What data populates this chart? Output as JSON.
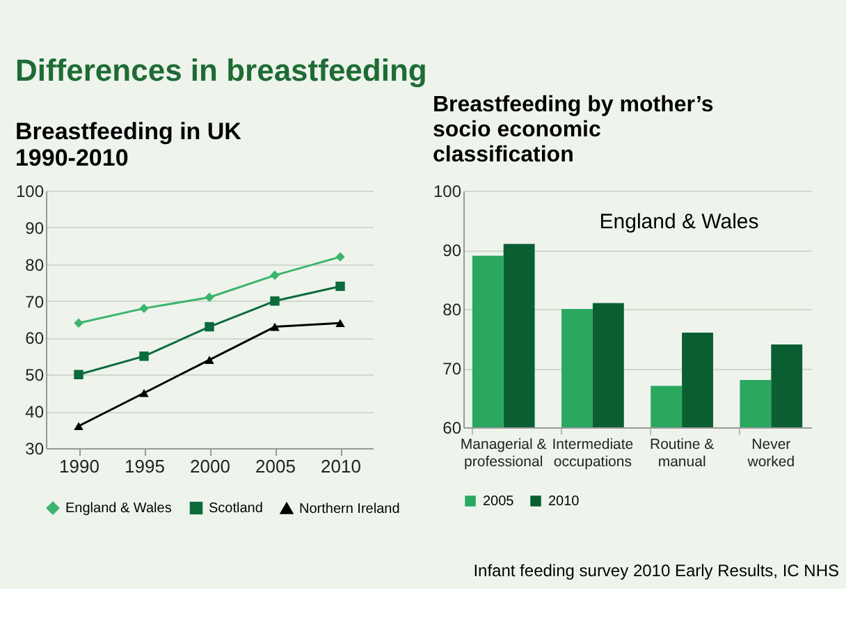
{
  "chart_data": [
    {
      "type": "line",
      "title": "Breastfeeding in UK 1990-2010",
      "annotations": [
        "Differences in breastfeeding"
      ],
      "categories": [
        "1990",
        "1995",
        "2000",
        "2005",
        "2010"
      ],
      "series": [
        {
          "name": "England & Wales",
          "color": "#3cb46e",
          "marker": "diamond",
          "values": [
            64,
            68,
            71,
            77,
            82
          ]
        },
        {
          "name": "Scotland",
          "color": "#0b6b3a",
          "marker": "square",
          "values": [
            50,
            55,
            63,
            70,
            74
          ]
        },
        {
          "name": "Northern Ireland",
          "color": "#000000",
          "marker": "triangle",
          "values": [
            36,
            45,
            54,
            63,
            64
          ]
        }
      ],
      "ylim": [
        30,
        100
      ],
      "yticks": [
        30,
        40,
        50,
        60,
        70,
        80,
        90,
        100
      ],
      "grid": "y",
      "legend": "bottom",
      "line_style": "solid"
    },
    {
      "type": "bar",
      "title": "Breastfeeding by mother’s socio economic classification",
      "annotations": [
        "England  & Wales",
        "Infant feeding survey 2010 Early Results, IC NHS"
      ],
      "categories": [
        "Managerial & professional",
        "Intermediate occupations",
        "Routine & manual",
        "Never worked"
      ],
      "series": [
        {
          "name": "2005",
          "color": "#2aa860",
          "values": [
            89,
            80,
            67,
            68
          ]
        },
        {
          "name": "2010",
          "color": "#0b5e32",
          "values": [
            91,
            81,
            76,
            74
          ]
        }
      ],
      "ylim": [
        60,
        100
      ],
      "yticks": [
        60,
        70,
        80,
        90,
        100
      ],
      "grid": "y",
      "legend": "bottom"
    }
  ]
}
